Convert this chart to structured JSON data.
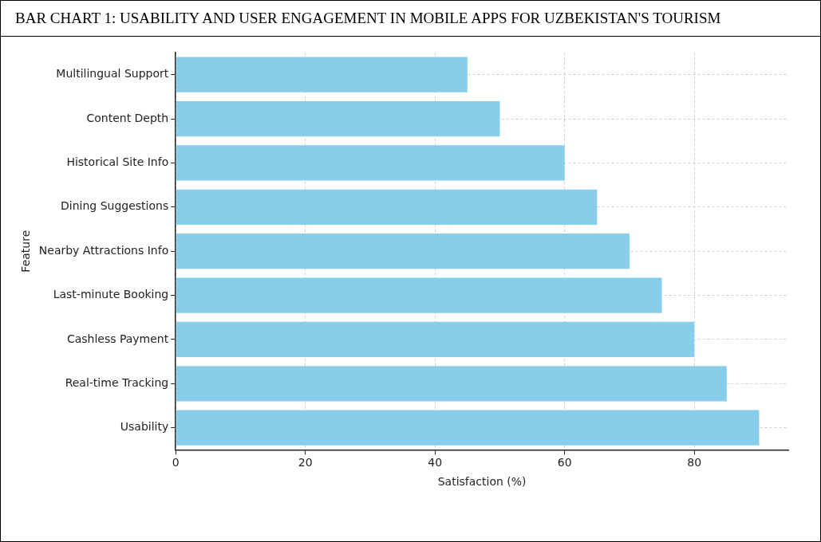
{
  "chart_data": {
    "type": "bar",
    "orientation": "horizontal",
    "title": "BAR CHART 1: USABILITY AND USER ENGAGEMENT IN MOBILE APPS FOR UZBEKISTAN'S TOURISM",
    "xlabel": "Satisfaction (%)",
    "ylabel": "Feature",
    "categories": [
      "Multilingual Support",
      "Content Depth",
      "Historical Site Info",
      "Dining Suggestions",
      "Nearby Attractions Info",
      "Last-minute Booking",
      "Cashless Payment",
      "Real-time Tracking",
      "Usability"
    ],
    "values": [
      45,
      50,
      60,
      65,
      70,
      75,
      80,
      85,
      90
    ],
    "color": "#87ceeb",
    "xlim": [
      0,
      94.5
    ],
    "xticks": [
      0,
      20,
      40,
      60,
      80
    ],
    "grid": true,
    "legend": false
  }
}
